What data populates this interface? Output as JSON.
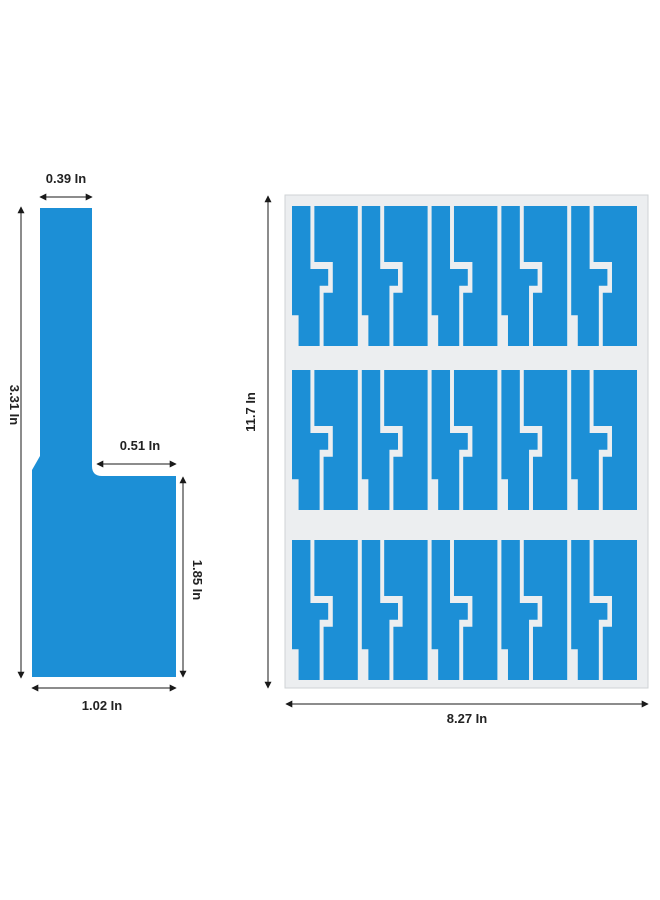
{
  "colors": {
    "label_blue": "#1c8fd6",
    "sheet_backing": "#eceef0",
    "sheet_border": "#cfd3d6",
    "dimension_line": "#1a1a1a",
    "text": "#222222"
  },
  "single_label": {
    "shape": "L-shaped cable label (narrow flag tail + wide body)",
    "dimensions": {
      "tail_width": "0.39 In",
      "total_height": "3.31 In",
      "body_extension": "0.51 In",
      "body_height": "1.85 In",
      "body_width": "1.02 In"
    }
  },
  "sheet": {
    "dimensions": {
      "height": "11.7 In",
      "width": "8.27 In"
    },
    "grid": {
      "rows": 3,
      "columns": 5
    }
  }
}
